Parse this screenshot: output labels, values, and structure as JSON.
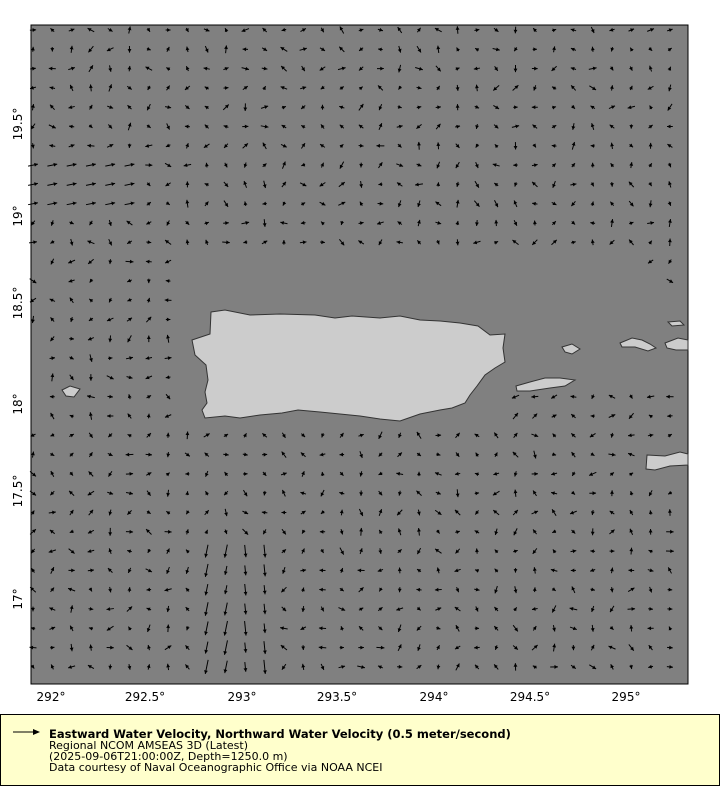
{
  "map": {
    "ocean_color": "#808080",
    "land_color": "#cccccc",
    "arrow_color": "#000000",
    "lon_ticks": [
      "292°",
      "292.5°",
      "293°",
      "293.5°",
      "294°",
      "294.5°",
      "295°"
    ],
    "lat_ticks": [
      "19.5°",
      "19°",
      "18.5°",
      "18°",
      "17.5°",
      "17°"
    ]
  },
  "legend": {
    "arrow_icon": "arrow-right-icon",
    "title": "Eastward Water Velocity, Northward Water Velocity (0.5 meter/second)",
    "dataset": "Regional NCOM AMSEAS 3D (Latest)",
    "time_depth": "(2025-09-06T21:00:00Z, Depth=1250.0 m)",
    "credit": "Data courtesy of Naval Oceanographic Office via NOAA NCEI"
  }
}
